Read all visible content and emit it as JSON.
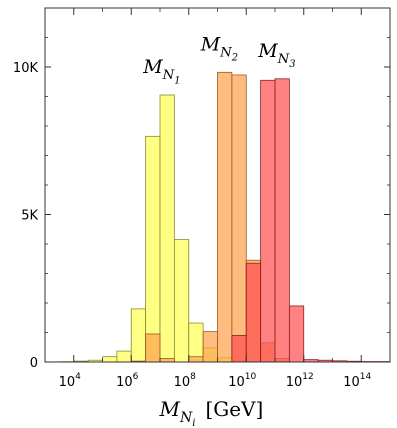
{
  "chart_data": {
    "type": "bar",
    "x_scale": "log10",
    "xlim": [
      1000,
      1000000000000000.0
    ],
    "ylim": [
      0,
      12000
    ],
    "grid": false,
    "xlabel": {
      "main": "M",
      "sub": "N",
      "subsub": "i",
      "unit": "[GeV]"
    },
    "yticks": [
      {
        "value": 0,
        "label": "0"
      },
      {
        "value": 5000,
        "label": "5K"
      },
      {
        "value": 10000,
        "label": "10K"
      }
    ],
    "xticks": [
      {
        "value": 10000,
        "base": "10",
        "exp": "4"
      },
      {
        "value": 1000000,
        "base": "10",
        "exp": "6"
      },
      {
        "value": 100000000,
        "base": "10",
        "exp": "8"
      },
      {
        "value": 10000000000,
        "base": "10",
        "exp": "10"
      },
      {
        "value": 1000000000000,
        "base": "10",
        "exp": "12"
      },
      {
        "value": 100000000000000,
        "base": "10",
        "exp": "14"
      }
    ],
    "bin_width_log10": 0.5,
    "series": [
      {
        "name": "M_N1",
        "label": {
          "main": "M",
          "sub": "N",
          "subsub": "1"
        },
        "fill": "#ffff55",
        "stroke": "#8a8a30",
        "bins": [
          {
            "x0": 1000,
            "x1": 3162,
            "value": 5
          },
          {
            "x0": 3162,
            "x1": 10000,
            "value": 10
          },
          {
            "x0": 10000,
            "x1": 31623,
            "value": 30
          },
          {
            "x0": 31623,
            "x1": 100000,
            "value": 60
          },
          {
            "x0": 100000,
            "x1": 316228,
            "value": 180
          },
          {
            "x0": 316228,
            "x1": 1000000,
            "value": 370
          },
          {
            "x0": 1000000,
            "x1": 3162278,
            "value": 1800
          },
          {
            "x0": 3162278,
            "x1": 10000000,
            "value": 7650
          },
          {
            "x0": 10000000,
            "x1": 31622777,
            "value": 9050
          },
          {
            "x0": 31622777,
            "x1": 100000000,
            "value": 4150
          },
          {
            "x0": 100000000,
            "x1": 316227766,
            "value": 1320
          },
          {
            "x0": 316227766,
            "x1": 1000000000,
            "value": 480
          },
          {
            "x0": 1000000000,
            "x1": 3162277660,
            "value": 140
          },
          {
            "x0": 3162277660,
            "x1": 10000000000,
            "value": 40
          }
        ]
      },
      {
        "name": "M_N2",
        "label": {
          "main": "M",
          "sub": "N",
          "subsub": "2"
        },
        "fill": "#ffa24d",
        "stroke": "#9a5a20",
        "bins": [
          {
            "x0": 1000000,
            "x1": 3162278,
            "value": 30
          },
          {
            "x0": 3162278,
            "x1": 10000000,
            "value": 950
          },
          {
            "x0": 10000000,
            "x1": 31622777,
            "value": 120
          },
          {
            "x0": 100000000,
            "x1": 316227766,
            "value": 180
          },
          {
            "x0": 316227766,
            "x1": 1000000000,
            "value": 1030
          },
          {
            "x0": 1000000000,
            "x1": 3162277660,
            "value": 9820
          },
          {
            "x0": 3162277660,
            "x1": 10000000000,
            "value": 9730
          },
          {
            "x0": 10000000000,
            "x1": 31622776602,
            "value": 3450
          },
          {
            "x0": 31622776602,
            "x1": 100000000000,
            "value": 650
          },
          {
            "x0": 100000000000,
            "x1": 316227766017,
            "value": 120
          }
        ]
      },
      {
        "name": "M_N3",
        "label": {
          "main": "M",
          "sub": "N",
          "subsub": "3"
        },
        "fill": "#ff5050",
        "stroke": "#8a2020",
        "bins": [
          {
            "x0": 3162277660,
            "x1": 10000000000,
            "value": 900
          },
          {
            "x0": 10000000000,
            "x1": 31622776602,
            "value": 3350
          },
          {
            "x0": 31622776602,
            "x1": 100000000000,
            "value": 9550
          },
          {
            "x0": 100000000000,
            "x1": 316227766017,
            "value": 9600
          },
          {
            "x0": 316227766017,
            "x1": 1000000000000,
            "value": 1900
          },
          {
            "x0": 1000000000000,
            "x1": 3162277660168,
            "value": 80
          },
          {
            "x0": 3162277660168,
            "x1": 10000000000000,
            "value": 60
          },
          {
            "x0": 10000000000000,
            "x1": 31622776601684,
            "value": 40
          },
          {
            "x0": 31622776601684,
            "x1": 100000000000000,
            "value": 25
          },
          {
            "x0": 100000000000000,
            "x1": 1000000000000000,
            "value": 15
          }
        ]
      }
    ]
  }
}
